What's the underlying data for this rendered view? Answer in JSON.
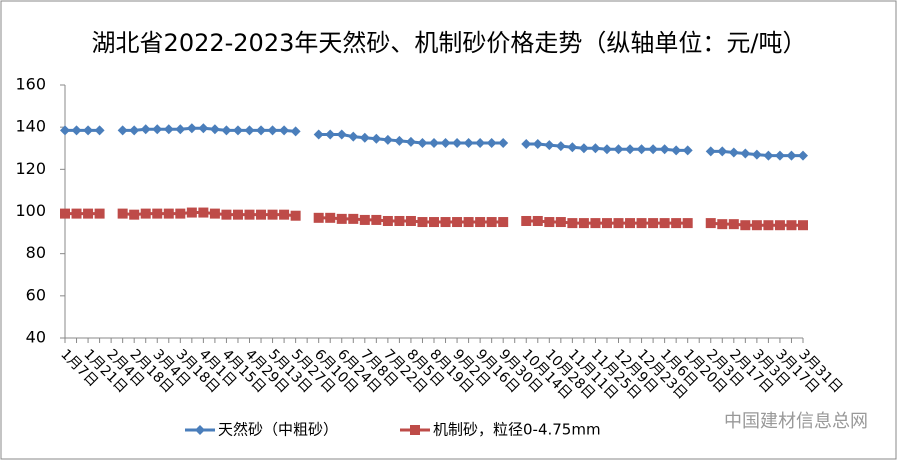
{
  "chart_data": {
    "type": "line",
    "title": "湖北省2022-2023年天然砂、机制砂价格走势（纵轴单位：元/吨）",
    "categories": [
      "1月7日",
      null,
      "1月21日",
      null,
      "2月4日",
      null,
      "2月18日",
      null,
      "3月4日",
      null,
      "3月18日",
      null,
      "4月1日",
      null,
      "4月15日",
      null,
      "4月29日",
      null,
      "5月13日",
      null,
      "5月27日",
      null,
      "6月10日",
      null,
      "6月24日",
      null,
      "7月8日",
      null,
      "7月22日",
      null,
      "8月5日",
      null,
      "8月19日",
      null,
      "9月2日",
      null,
      "9月16日",
      null,
      "9月30日",
      null,
      "10月14日",
      null,
      "10月28日",
      null,
      "11月11日",
      null,
      "11月25日",
      null,
      "12月9日",
      null,
      "12月23日",
      null,
      "1月6日",
      null,
      "1月20日",
      null,
      "2月3日",
      null,
      "2月17日",
      null,
      "3月3日",
      null,
      "3月17日",
      null,
      "3月31日"
    ],
    "series": [
      {
        "name": "天然砂（中粗砂）",
        "color": "#4a7ebb",
        "marker": "diamond",
        "values": [
          138.5,
          138.5,
          138.5,
          138.5,
          null,
          138.5,
          138.5,
          139,
          139,
          139,
          139,
          139.5,
          139.5,
          139,
          138.5,
          138.5,
          138.5,
          138.5,
          138.5,
          138.5,
          138,
          null,
          136.5,
          136.5,
          136.5,
          135.5,
          135,
          134.5,
          134,
          133.5,
          133,
          132.5,
          132.5,
          132.5,
          132.5,
          132.5,
          132.5,
          132.5,
          132.5,
          null,
          132,
          132,
          131.5,
          131,
          130.5,
          130,
          130,
          129.5,
          129.5,
          129.5,
          129.5,
          129.5,
          129.5,
          129,
          129,
          null,
          128.5,
          128.5,
          128,
          127.5,
          127,
          126.5,
          126.5,
          126.5,
          126.5
        ]
      },
      {
        "name": "机制砂，粒径0-4.75mm",
        "color": "#be4b48",
        "marker": "square",
        "values": [
          99,
          99,
          99,
          99,
          null,
          99,
          98.5,
          99,
          99,
          99,
          99,
          99.5,
          99.5,
          99,
          98.5,
          98.5,
          98.5,
          98.5,
          98.5,
          98.5,
          98,
          null,
          97,
          97,
          96.5,
          96.5,
          96,
          96,
          95.5,
          95.5,
          95.5,
          95,
          95,
          95,
          95,
          95,
          95,
          95,
          95,
          null,
          95.5,
          95.5,
          95,
          95,
          94.5,
          94.5,
          94.5,
          94.5,
          94.5,
          94.5,
          94.5,
          94.5,
          94.5,
          94.5,
          94.5,
          null,
          94.5,
          94,
          94,
          93.5,
          93.5,
          93.5,
          93.5,
          93.5,
          93.5
        ]
      }
    ],
    "ylim": [
      40,
      160
    ],
    "yticks": [
      40,
      60,
      80,
      100,
      120,
      140,
      160
    ],
    "grid": false,
    "legend": "bottom"
  },
  "watermark": "中国建材信息总网"
}
